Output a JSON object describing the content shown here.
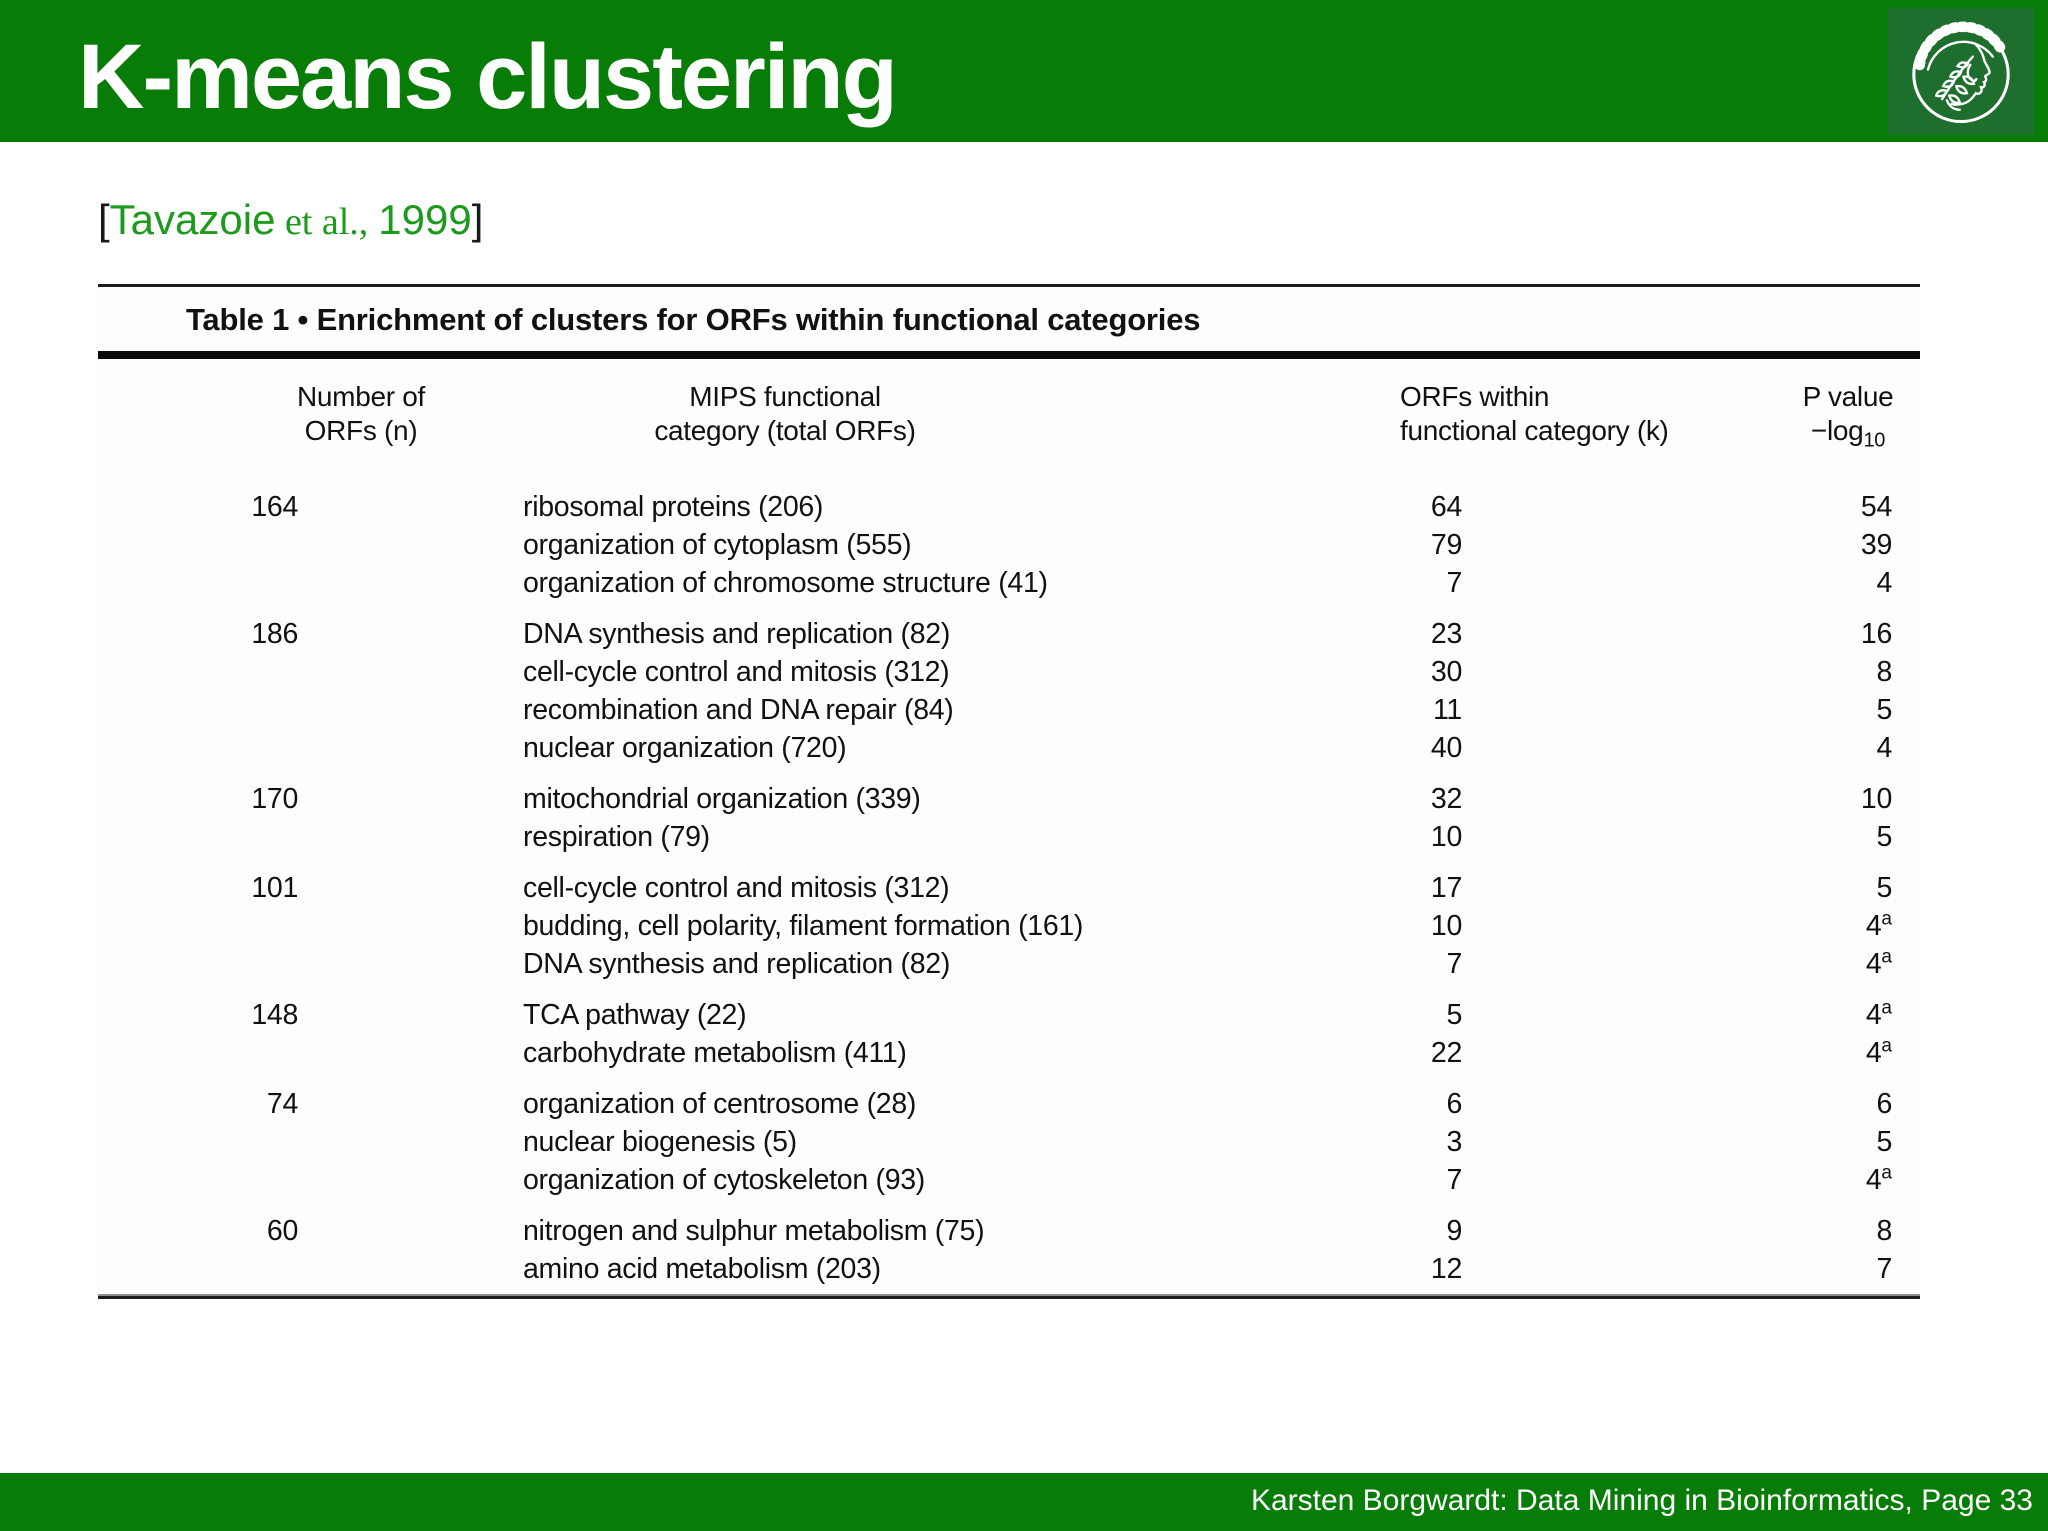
{
  "slide": {
    "title": "K-means clustering",
    "footer": "Karsten Borgwardt: Data Mining in Bioinformatics, Page 33",
    "colors": {
      "header_green": "#077c07",
      "logo_green": "#1e6f2d",
      "citation_green": "#1c9a1c"
    },
    "logo_icon": "mpg-minerva"
  },
  "citation": {
    "bracket_open": "[",
    "authors": "Tavazoie",
    "et_al": " et al.,",
    "year": "1999",
    "bracket_close": "]"
  },
  "table": {
    "title": "Table 1 • Enrichment of clusters for ORFs within functional categories",
    "columns": [
      {
        "line1": "Number of",
        "line2": "ORFs (n)"
      },
      {
        "line1": "MIPS functional",
        "line2": "category (total ORFs)"
      },
      {
        "line1": "ORFs within",
        "line2": "functional category (k)"
      },
      {
        "line1": "P value",
        "line2_main": "−log",
        "line2_sub": "10"
      }
    ],
    "groups": [
      {
        "n": "164",
        "rows": [
          {
            "category": "ribosomal proteins (206)",
            "k": "64",
            "p": "54",
            "p_note": ""
          },
          {
            "category": "organization of cytoplasm (555)",
            "k": "79",
            "p": "39",
            "p_note": ""
          },
          {
            "category": "organization of chromosome structure (41)",
            "k": "7",
            "p": "4",
            "p_note": ""
          }
        ]
      },
      {
        "n": "186",
        "rows": [
          {
            "category": "DNA synthesis and replication (82)",
            "k": "23",
            "p": "16",
            "p_note": ""
          },
          {
            "category": "cell-cycle control and mitosis (312)",
            "k": "30",
            "p": "8",
            "p_note": ""
          },
          {
            "category": "recombination and DNA repair (84)",
            "k": "11",
            "p": "5",
            "p_note": ""
          },
          {
            "category": "nuclear organization (720)",
            "k": "40",
            "p": "4",
            "p_note": ""
          }
        ]
      },
      {
        "n": "170",
        "rows": [
          {
            "category": "mitochondrial organization (339)",
            "k": "32",
            "p": "10",
            "p_note": ""
          },
          {
            "category": "respiration (79)",
            "k": "10",
            "p": "5",
            "p_note": ""
          }
        ]
      },
      {
        "n": "101",
        "rows": [
          {
            "category": "cell-cycle control and mitosis (312)",
            "k": "17",
            "p": "5",
            "p_note": ""
          },
          {
            "category": "budding, cell polarity, filament formation (161)",
            "k": "10",
            "p": "4",
            "p_note": "a"
          },
          {
            "category": "DNA synthesis and replication (82)",
            "k": "7",
            "p": "4",
            "p_note": "a"
          }
        ]
      },
      {
        "n": "148",
        "rows": [
          {
            "category": "TCA pathway (22)",
            "k": "5",
            "p": "4",
            "p_note": "a"
          },
          {
            "category": "carbohydrate metabolism (411)",
            "k": "22",
            "p": "4",
            "p_note": "a"
          }
        ]
      },
      {
        "n": "74",
        "rows": [
          {
            "category": "organization of centrosome (28)",
            "k": "6",
            "p": "6",
            "p_note": ""
          },
          {
            "category": "nuclear biogenesis (5)",
            "k": "3",
            "p": "5",
            "p_note": ""
          },
          {
            "category": "organization of cytoskeleton (93)",
            "k": "7",
            "p": "4",
            "p_note": "a"
          }
        ]
      },
      {
        "n": "60",
        "rows": [
          {
            "category": "nitrogen and sulphur metabolism (75)",
            "k": "9",
            "p": "8",
            "p_note": ""
          },
          {
            "category": "amino acid metabolism (203)",
            "k": "12",
            "p": "7",
            "p_note": ""
          }
        ]
      }
    ]
  }
}
